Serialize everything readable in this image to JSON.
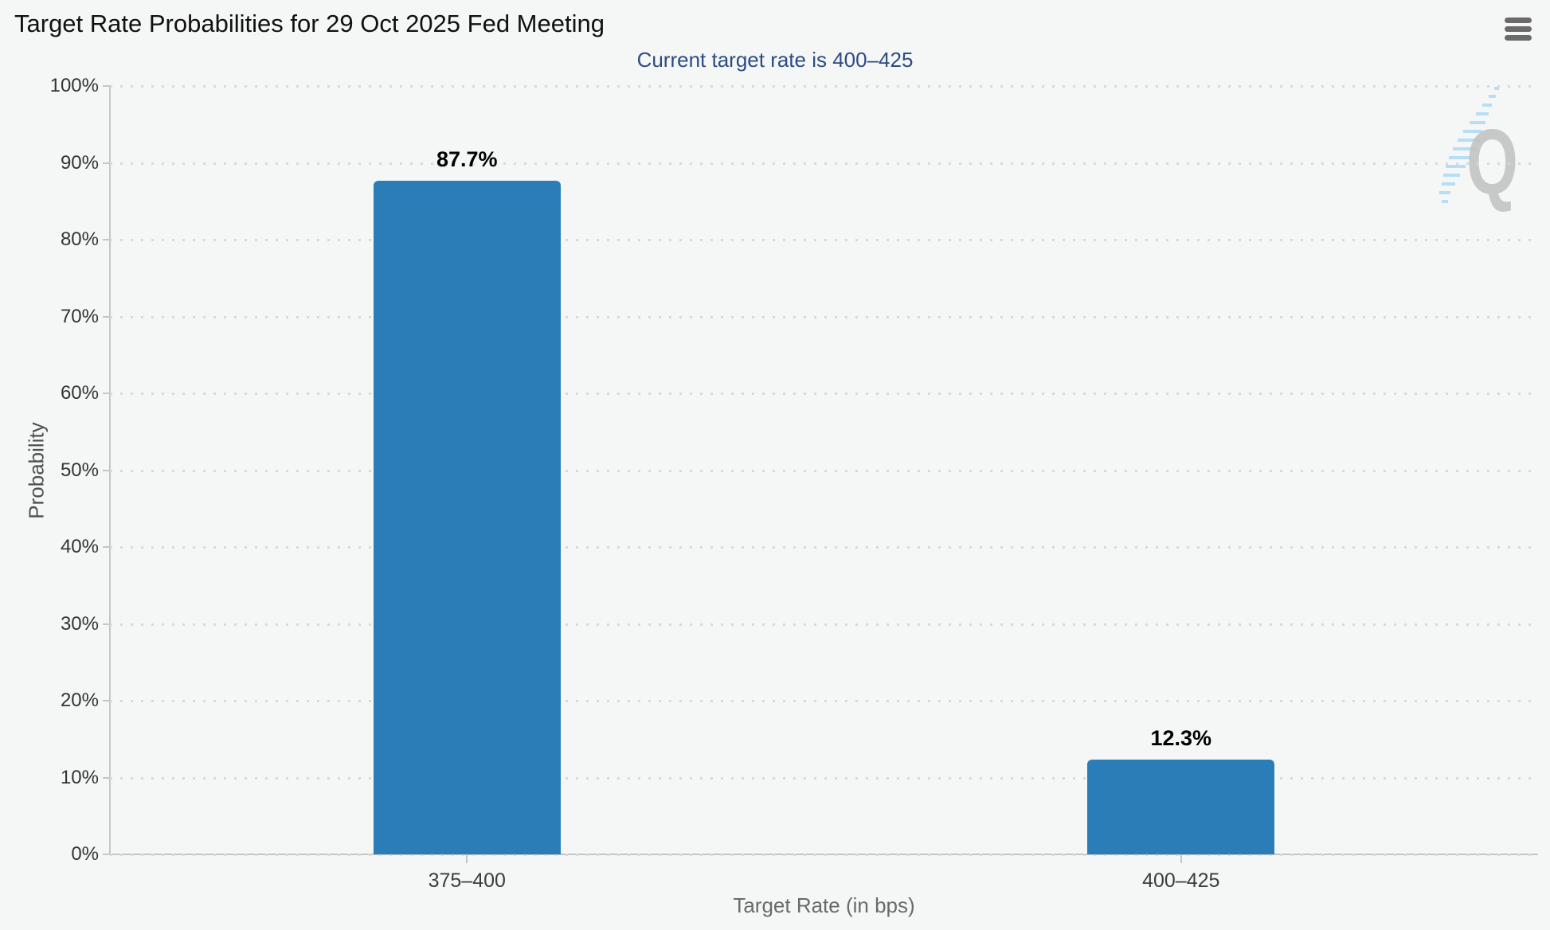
{
  "header": {
    "menu_icon": "hamburger-menu-icon"
  },
  "chart_data": {
    "type": "bar",
    "title": "Target Rate Probabilities for 29 Oct 2025 Fed Meeting",
    "subtitle": "Current target rate is 400–425",
    "categories": [
      "375–400",
      "400–425"
    ],
    "values": [
      87.7,
      12.3
    ],
    "value_labels": [
      "87.7%",
      "12.3%"
    ],
    "xlabel": "Target Rate (in bps)",
    "ylabel": "Probability",
    "ylim": [
      0,
      100
    ],
    "ytick_step": 10,
    "ytick_labels": [
      "0%",
      "10%",
      "20%",
      "30%",
      "40%",
      "50%",
      "60%",
      "70%",
      "80%",
      "90%",
      "100%"
    ],
    "grid": "dotted-horizontal",
    "legend_position": "none",
    "bar_color": "#2b7db8"
  },
  "watermark": {
    "letter": "Q",
    "letter_color": "#c0c0c0",
    "dash_color": "#b8def5"
  }
}
